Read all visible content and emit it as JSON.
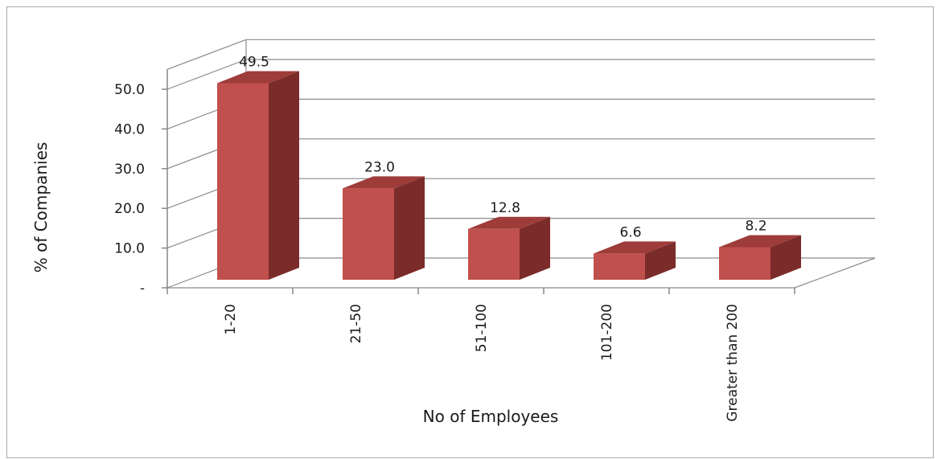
{
  "chart_data": {
    "type": "bar",
    "style": "3d-column",
    "categories": [
      "1-20",
      "21-50",
      "51-100",
      "101-200",
      "Greater than 200"
    ],
    "values": [
      49.5,
      23.0,
      12.8,
      6.6,
      8.2
    ],
    "data_labels": [
      "49.5",
      "23.0",
      "12.8",
      "6.6",
      "8.2"
    ],
    "xlabel": "No of Employees",
    "ylabel": "% of Companies",
    "ylim": [
      0,
      55
    ],
    "y_ticks": [
      {
        "value": 0,
        "label": "-"
      },
      {
        "value": 10,
        "label": "10.0"
      },
      {
        "value": 20,
        "label": "20.0"
      },
      {
        "value": 30,
        "label": "30.0"
      },
      {
        "value": 40,
        "label": "40.0"
      },
      {
        "value": 50,
        "label": "50.0"
      }
    ],
    "gridlines": true,
    "legend": "none",
    "colors": {
      "bar_front": "#c0504d",
      "bar_side": "#7b2c2a",
      "bar_top": "#9e3c39",
      "grid": "#8c8c8c",
      "axis": "#7f7f7f"
    }
  }
}
